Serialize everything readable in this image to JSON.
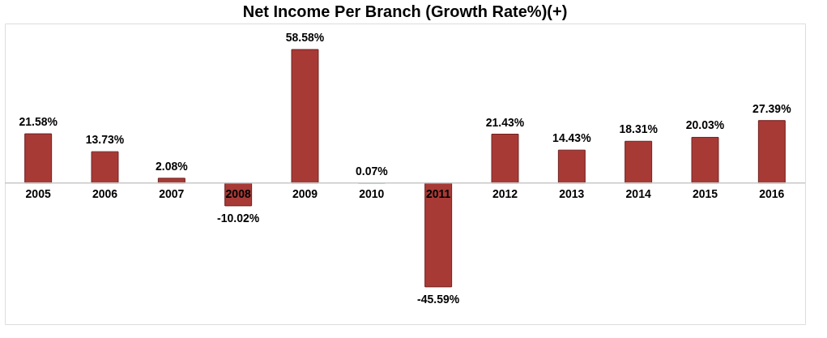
{
  "chart_data": {
    "type": "bar",
    "title": "Net Income Per Branch (Growth  Rate%)(+)",
    "categories": [
      "2005",
      "2006",
      "2007",
      "2008",
      "2009",
      "2010",
      "2011",
      "2012",
      "2013",
      "2014",
      "2015",
      "2016"
    ],
    "values": [
      21.58,
      13.73,
      2.08,
      -10.02,
      58.58,
      0.07,
      -45.59,
      21.43,
      14.43,
      18.31,
      20.03,
      27.39
    ],
    "value_labels": [
      "21.58%",
      "13.73%",
      "2.08%",
      "-10.02%",
      "58.58%",
      "0.07%",
      "-45.59%",
      "21.43%",
      "14.43%",
      "18.31%",
      "20.03%",
      "27.39%"
    ],
    "color": "#a83a36"
  }
}
